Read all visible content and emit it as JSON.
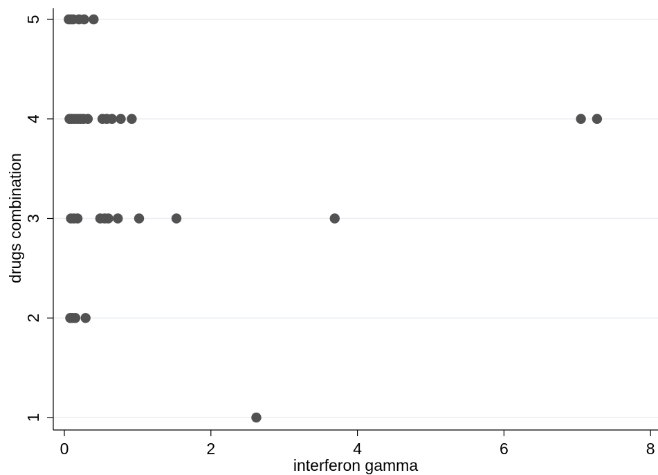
{
  "chart_data": {
    "type": "scatter",
    "title": "",
    "xlabel": "interferon gamma",
    "ylabel": "drugs combination",
    "xlim": [
      0,
      8
    ],
    "ylim": [
      1,
      5
    ],
    "xticks": [
      "0",
      "2",
      "4",
      "6",
      "8"
    ],
    "yticks": [
      "1",
      "2",
      "3",
      "4",
      "5"
    ],
    "grid": "horizontal",
    "marker_color": "#525252",
    "grid_color": "#e8eef2",
    "series": [
      {
        "points": [
          {
            "x": 0.06,
            "y": 5
          },
          {
            "x": 0.09,
            "y": 5
          },
          {
            "x": 0.12,
            "y": 5
          },
          {
            "x": 0.2,
            "y": 5
          },
          {
            "x": 0.27,
            "y": 5
          },
          {
            "x": 0.4,
            "y": 5
          },
          {
            "x": 0.07,
            "y": 4
          },
          {
            "x": 0.1,
            "y": 4
          },
          {
            "x": 0.14,
            "y": 4
          },
          {
            "x": 0.18,
            "y": 4
          },
          {
            "x": 0.22,
            "y": 4
          },
          {
            "x": 0.26,
            "y": 4
          },
          {
            "x": 0.32,
            "y": 4
          },
          {
            "x": 0.52,
            "y": 4
          },
          {
            "x": 0.58,
            "y": 4
          },
          {
            "x": 0.65,
            "y": 4
          },
          {
            "x": 0.77,
            "y": 4
          },
          {
            "x": 0.92,
            "y": 4
          },
          {
            "x": 7.05,
            "y": 4
          },
          {
            "x": 7.27,
            "y": 4
          },
          {
            "x": 0.09,
            "y": 3
          },
          {
            "x": 0.13,
            "y": 3
          },
          {
            "x": 0.18,
            "y": 3
          },
          {
            "x": 0.49,
            "y": 3
          },
          {
            "x": 0.55,
            "y": 3
          },
          {
            "x": 0.6,
            "y": 3
          },
          {
            "x": 0.73,
            "y": 3
          },
          {
            "x": 1.02,
            "y": 3
          },
          {
            "x": 1.53,
            "y": 3
          },
          {
            "x": 3.69,
            "y": 3
          },
          {
            "x": 0.08,
            "y": 2
          },
          {
            "x": 0.11,
            "y": 2
          },
          {
            "x": 0.15,
            "y": 2
          },
          {
            "x": 0.29,
            "y": 2
          },
          {
            "x": 2.62,
            "y": 1
          }
        ]
      }
    ]
  }
}
